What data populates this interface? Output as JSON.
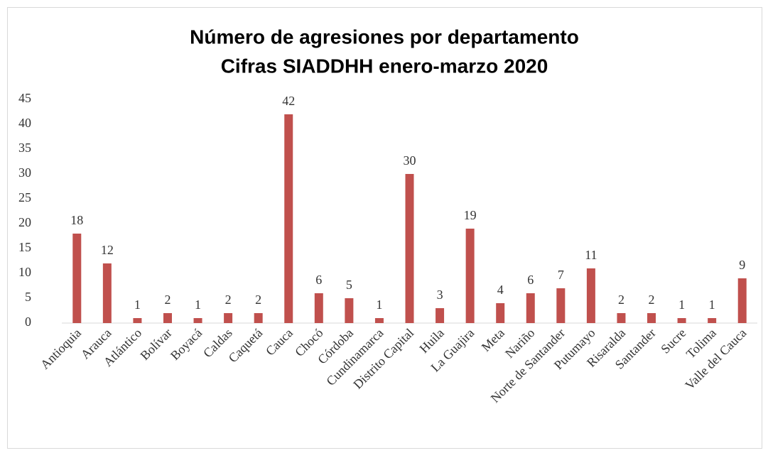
{
  "chart_data": {
    "type": "bar",
    "title": "Número de agresiones por departamento",
    "subtitle": "Cifras SIADDHH enero-marzo 2020",
    "categories": [
      "Antioquia",
      "Arauca",
      "Atlántico",
      "Bolívar",
      "Boyacá",
      "Caldas",
      "Caquetá",
      "Cauca",
      "Chocó",
      "Córdoba",
      "Cundinamarca",
      "Distrito Capital",
      "Huila",
      "La Guajira",
      "Meta",
      "Nariño",
      "Norte de Santander",
      "Putumayo",
      "Risaralda",
      "Santander",
      "Sucre",
      "Tolima",
      "Valle del Cauca"
    ],
    "values": [
      18,
      12,
      1,
      2,
      1,
      2,
      2,
      42,
      6,
      5,
      1,
      30,
      3,
      19,
      4,
      6,
      7,
      11,
      2,
      2,
      1,
      1,
      9
    ],
    "color": "#c0504d",
    "ylim": [
      0,
      45
    ],
    "yticks": [
      0,
      5,
      10,
      15,
      20,
      25,
      30,
      35,
      40,
      45
    ],
    "grid": false
  }
}
